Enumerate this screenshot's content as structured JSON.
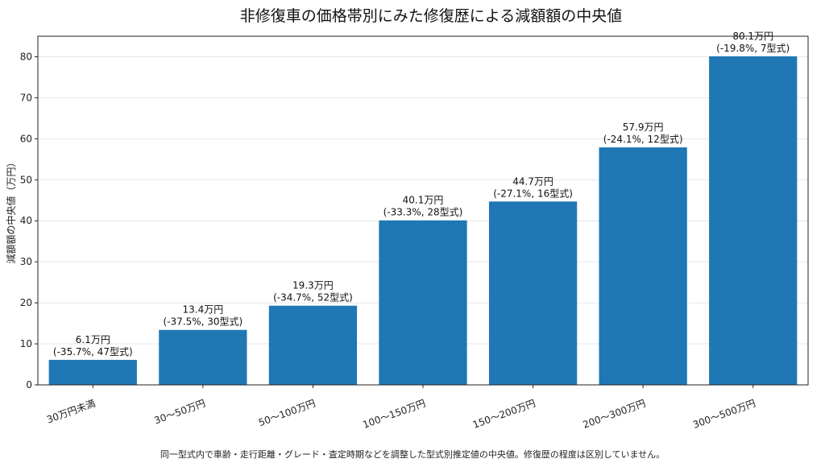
{
  "chart_data": {
    "type": "bar",
    "title": "非修復車の価格帯別にみた修復歴による減額額の中央値",
    "ylabel": "減額額の中央値（万円）",
    "xlabel": "",
    "ylim": [
      0,
      85
    ],
    "yticks": [
      0,
      10,
      20,
      30,
      40,
      50,
      60,
      70,
      80
    ],
    "grid": "horizontal",
    "bar_color": "#1f77b4",
    "categories": [
      "30万円未満",
      "30〜50万円",
      "50〜100万円",
      "100〜150万円",
      "150〜200万円",
      "200〜300万円",
      "300〜500万円"
    ],
    "values": [
      6.1,
      13.4,
      19.3,
      40.1,
      44.7,
      57.9,
      80.1
    ],
    "data_labels": [
      [
        "6.1万円",
        "(-35.7%, 47型式)"
      ],
      [
        "13.4万円",
        "(-37.5%, 30型式)"
      ],
      [
        "19.3万円",
        "(-34.7%, 52型式)"
      ],
      [
        "40.1万円",
        "(-33.3%, 28型式)"
      ],
      [
        "44.7万円",
        "(-27.1%, 16型式)"
      ],
      [
        "57.9万円",
        "(-24.1%, 12型式)"
      ],
      [
        "80.1万円",
        "(-19.8%, 7型式)"
      ]
    ]
  },
  "footnote": "同一型式内で車齢・走行距離・グレード・査定時期などを調整した型式別推定値の中央値。修復歴の程度は区別していません。"
}
